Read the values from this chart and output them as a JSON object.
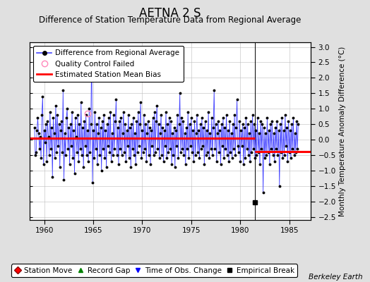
{
  "title": "AETNA 2 S",
  "subtitle": "Difference of Station Temperature Data from Regional Average",
  "ylabel": "Monthly Temperature Anomaly Difference (°C)",
  "xlim": [
    1958.5,
    1987.2
  ],
  "ylim": [
    -2.6,
    3.15
  ],
  "yticks": [
    -2.5,
    -2,
    -1.5,
    -1,
    -0.5,
    0,
    0.5,
    1,
    1.5,
    2,
    2.5,
    3
  ],
  "xticks": [
    1960,
    1965,
    1970,
    1975,
    1980,
    1985
  ],
  "bias1_start": 1958.5,
  "bias1_end": 1981.5,
  "bias1_value": 0.05,
  "bias2_start": 1981.5,
  "bias2_end": 1987.2,
  "bias2_value": -0.38,
  "empirical_break_x": 1981.5,
  "empirical_break_y": -2.02,
  "qc_fail_x": 1964.42,
  "qc_fail_y": 0.85,
  "vertical_line_x": 1981.5,
  "line_color": "#4444FF",
  "dot_color": "#000000",
  "bias_color": "#FF0000",
  "bg_color": "#E0E0E0",
  "plot_bg_color": "#FFFFFF",
  "grid_color": "#BBBBBB",
  "watermark": "Berkeley Earth",
  "start_year": 1959.0,
  "title_fontsize": 12,
  "subtitle_fontsize": 8.5,
  "ylabel_fontsize": 7.5,
  "watermark_fontsize": 7.5,
  "legend_fontsize": 7.5,
  "tick_fontsize": 7.5,
  "data_values": [
    0.4,
    -0.5,
    -0.4,
    0.3,
    0.7,
    0.2,
    -0.3,
    0.1,
    -0.6,
    0.8,
    1.4,
    -0.8,
    0.3,
    -0.1,
    0.5,
    -0.7,
    0.6,
    0.1,
    -0.5,
    0.9,
    -0.3,
    0.4,
    -1.2,
    0.7,
    0.2,
    -0.6,
    1.1,
    -0.4,
    0.8,
    -0.2,
    0.5,
    -0.9,
    0.3,
    0.6,
    -0.4,
    1.6,
    -1.3,
    0.2,
    -0.5,
    0.7,
    1.0,
    -0.3,
    0.4,
    -0.8,
    0.5,
    -0.2,
    0.9,
    -0.6,
    0.3,
    -1.1,
    0.7,
    0.1,
    -0.4,
    0.8,
    -0.7,
    0.5,
    -0.3,
    1.2,
    -0.5,
    0.4,
    -0.9,
    0.6,
    -0.2,
    0.8,
    -0.5,
    0.3,
    -0.7,
    1.0,
    -0.4,
    0.5,
    2.9,
    -1.4,
    0.3,
    -0.6,
    0.9,
    -0.3,
    0.5,
    -0.8,
    0.2,
    0.7,
    -0.5,
    0.4,
    -1.0,
    0.6,
    -0.3,
    0.8,
    -0.6,
    0.3,
    -0.9,
    0.5,
    -0.2,
    0.7,
    -0.4,
    0.9,
    -0.7,
    0.2,
    -0.5,
    0.8,
    -0.3,
    0.6,
    1.3,
    -0.5,
    0.4,
    -0.8,
    0.6,
    -0.3,
    0.7,
    -0.5,
    0.2,
    0.9,
    -0.4,
    0.5,
    -0.7,
    0.3,
    -0.2,
    0.8,
    -0.6,
    0.4,
    -0.9,
    0.5,
    -0.3,
    0.7,
    -0.5,
    0.2,
    -0.8,
    0.6,
    -0.4,
    0.9,
    -0.2,
    0.5,
    1.2,
    -0.6,
    0.3,
    -0.4,
    0.8,
    -0.3,
    0.5,
    -0.7,
    0.2,
    0.6,
    -0.5,
    0.4,
    -0.8,
    0.3,
    -0.2,
    0.7,
    -0.5,
    0.9,
    -0.4,
    0.6,
    1.1,
    -0.3,
    0.5,
    -0.6,
    0.2,
    0.8,
    -0.5,
    0.4,
    -0.7,
    0.3,
    -0.2,
    0.9,
    -0.6,
    0.5,
    -0.4,
    0.7,
    -0.3,
    0.6,
    -0.8,
    0.2,
    -0.5,
    0.4,
    -0.9,
    0.3,
    -0.2,
    0.8,
    -0.6,
    0.5,
    1.5,
    -0.4,
    0.7,
    -0.3,
    0.6,
    -0.5,
    0.2,
    -0.8,
    0.4,
    -0.3,
    0.9,
    -0.6,
    0.5,
    -0.2,
    0.7,
    -0.4,
    0.3,
    -0.7,
    0.6,
    -0.5,
    0.2,
    0.8,
    -0.4,
    0.3,
    -0.6,
    0.5,
    -0.3,
    0.7,
    -0.2,
    0.4,
    -0.8,
    0.6,
    -0.5,
    0.3,
    -0.4,
    0.9,
    -0.6,
    0.2,
    -0.3,
    0.7,
    -0.5,
    0.4,
    1.6,
    -0.3,
    0.5,
    -0.7,
    0.2,
    0.6,
    -0.4,
    0.3,
    -0.8,
    0.5,
    -0.2,
    0.7,
    -0.6,
    0.4,
    -0.3,
    0.8,
    -0.5,
    0.3,
    -0.7,
    0.6,
    -0.4,
    0.2,
    -0.6,
    0.5,
    -0.3,
    0.8,
    -0.5,
    0.4,
    1.3,
    -0.2,
    -0.4,
    0.6,
    -0.7,
    0.3,
    -0.2,
    0.5,
    -0.8,
    0.4,
    -0.6,
    0.7,
    -0.3,
    0.5,
    -0.5,
    0.2,
    -0.7,
    0.6,
    -0.4,
    0.8,
    -0.3,
    0.5,
    -0.6,
    0.3,
    -0.5,
    0.7,
    -0.4,
    0.2,
    -0.8,
    0.6,
    -0.3,
    0.5,
    -1.7,
    0.4,
    -0.6,
    0.2,
    -0.5,
    0.7,
    -0.4,
    0.3,
    -0.8,
    0.5,
    -0.3,
    0.6,
    -0.5,
    0.2,
    -0.7,
    0.4,
    -0.3,
    0.6,
    -0.5,
    0.3,
    -1.5,
    0.5,
    -0.4,
    0.7,
    -0.6,
    0.3,
    -0.5,
    0.8,
    -0.2,
    0.4,
    -0.7,
    0.6,
    -0.4,
    0.3,
    -0.6,
    0.5,
    -0.3,
    0.7,
    -0.5,
    0.2,
    -0.4,
    0.6,
    -0.3,
    0.5
  ]
}
